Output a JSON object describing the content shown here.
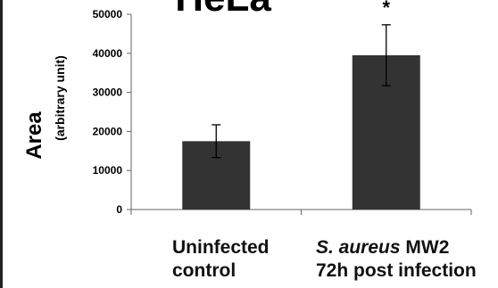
{
  "chart_data": {
    "type": "bar",
    "title": "HeLa",
    "ylabel": "Area",
    "ylabel_sub": "(arbitrary unit)",
    "categories": [
      "Uninfected control",
      "S. aureus MW2 72h post infection"
    ],
    "category_lines": [
      [
        "Uninfected",
        "control"
      ],
      [
        "MW2",
        "72h post infection"
      ]
    ],
    "category_italic_prefix": [
      "",
      "S. aureus"
    ],
    "values": [
      17500,
      39500
    ],
    "error": [
      4200,
      7800
    ],
    "significance": [
      "",
      "*"
    ],
    "ylim": [
      0,
      50000
    ],
    "yticks": [
      0,
      10000,
      20000,
      30000,
      40000,
      50000
    ],
    "ytick_labels": [
      "0",
      "10000",
      "20000",
      "30000",
      "40000",
      "50000"
    ],
    "grid": false,
    "bar_color": "#333333",
    "axis_color": "#666666"
  }
}
